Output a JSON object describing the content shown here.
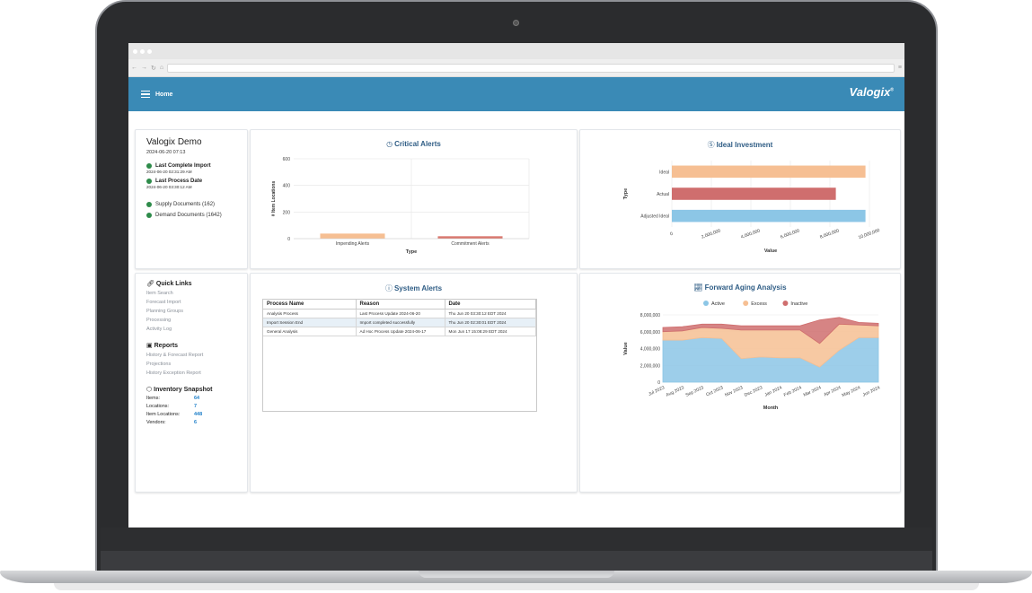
{
  "app": {
    "page_title": "Home",
    "logo_text": "Valogix",
    "logo_mark": "®"
  },
  "company": {
    "name": "Valogix Demo",
    "datetime": "2024-06-20 07:13",
    "last_import_label": "Last Complete Import",
    "last_import_value": "2024-06-20 02:31:29 AM",
    "last_process_label": "Last Process Date",
    "last_process_value": "2024-06-20 03:30:12 AM",
    "supply_docs": "Supply Documents (162)",
    "demand_docs": "Demand Documents (1642)",
    "status_color": "#2e8b4a"
  },
  "quick_links": {
    "title": "Quick Links",
    "items": [
      "Item Search",
      "Forecast Import",
      "Planning Groups",
      "Processing",
      "Activity Log"
    ]
  },
  "reports": {
    "title": "Reports",
    "items": [
      "History & Forecast Report",
      "Projections",
      "History Exception Report"
    ]
  },
  "snapshot": {
    "title": "Inventory Snapshot",
    "rows": [
      {
        "label": "Items:",
        "value": "64"
      },
      {
        "label": "Locations:",
        "value": "7"
      },
      {
        "label": "Item Locations:",
        "value": "448"
      },
      {
        "label": "Vendors:",
        "value": "6"
      }
    ]
  },
  "system_alerts": {
    "title": "System Alerts",
    "columns": [
      "Process Name",
      "Reason",
      "Date"
    ],
    "rows": [
      [
        "Analysis Process",
        "Last Process Update 2024-06-20",
        "Thu Jun 20 03:30:12 EDT 2024"
      ],
      [
        "Import Session End",
        "Import completed successfully",
        "Thu Jun 20 02:30:01 EDT 2024"
      ],
      [
        "General Analysis",
        "Ad Hoc Process Update 2024-06-17",
        "Mon Jun 17 15:08:29 EDT 2024"
      ]
    ]
  },
  "charts": {
    "critical": {
      "title": "Critical Alerts",
      "chart_data": {
        "type": "bar",
        "title": "Critical Alerts",
        "categories": [
          "Impending Alerts",
          "Commitment Alerts"
        ],
        "values": [
          38,
          18
        ],
        "colors": [
          "#f6bf93",
          "#d9786e"
        ],
        "xlabel": "Type",
        "ylabel": "# Item Locations",
        "ylim": [
          0,
          600
        ],
        "yticks": [
          "0",
          "200",
          "400",
          "600"
        ],
        "grid": true
      }
    },
    "ideal": {
      "title": "Ideal Investment",
      "chart_data": {
        "type": "bar",
        "orientation": "horizontal",
        "title": "Ideal Investment",
        "categories": [
          "Ideal",
          "Actual",
          "Adjusted Ideal"
        ],
        "values": [
          9800000,
          8300000,
          9800000
        ],
        "colors": [
          "#f6bf93",
          "#cf6e6e",
          "#8cc6e6"
        ],
        "xlabel": "Value",
        "ylabel": "Type",
        "xlim": [
          0,
          10000000
        ],
        "xticks": [
          "0",
          "2,000,000",
          "4,000,000",
          "6,000,000",
          "8,000,000",
          "10,000,000"
        ],
        "grid": true
      }
    },
    "aging": {
      "title": "Forward Aging Analysis",
      "chart_data": {
        "type": "area",
        "stacked": true,
        "title": "Forward Aging Analysis",
        "categories": [
          "Jul 2023",
          "Aug 2023",
          "Sep 2023",
          "Oct 2023",
          "Nov 2023",
          "Dec 2023",
          "Jan 2024",
          "Feb 2024",
          "Mar 2024",
          "Apr 2024",
          "May 2024",
          "Jun 2024"
        ],
        "series": [
          {
            "name": "Active",
            "color": "#8cc6e6",
            "values": [
              5000000,
              5000000,
              5300000,
              5200000,
              2800000,
              3000000,
              2900000,
              2900000,
              1800000,
              3800000,
              5300000,
              5300000
            ]
          },
          {
            "name": "Excess",
            "color": "#f6bf93",
            "values": [
              1000000,
              1100000,
              1200000,
              1200000,
              3400000,
              3200000,
              3300000,
              3300000,
              2800000,
              3100000,
              1500000,
              1400000
            ]
          },
          {
            "name": "Inactive",
            "color": "#cf6e6e",
            "values": [
              500000,
              500000,
              400000,
              500000,
              500000,
              500000,
              500000,
              500000,
              2800000,
              800000,
              300000,
              300000
            ]
          }
        ],
        "xlabel": "Month",
        "ylabel": "Value",
        "ylim": [
          0,
          8000000
        ],
        "yticks": [
          "0",
          "2,000,000",
          "4,000,000",
          "6,000,000",
          "8,000,000"
        ],
        "legend": "top"
      }
    }
  }
}
